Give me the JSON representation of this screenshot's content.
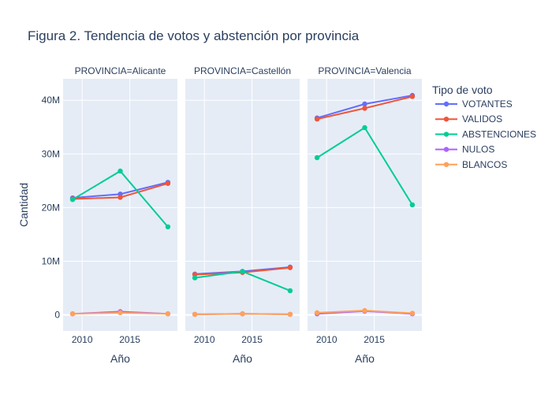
{
  "chart_data": {
    "type": "line",
    "title": "Figura 2. Tendencia de votos y abstención por provincia",
    "xlabel": "Año",
    "ylabel": "Cantidad",
    "x": [
      2009,
      2014,
      2019
    ],
    "xlim": [
      2008,
      2020
    ],
    "ylim": [
      -3,
      44
    ],
    "x_ticks": [
      2010,
      2015
    ],
    "y_ticks": [
      0,
      10,
      20,
      30,
      40
    ],
    "y_tick_labels": [
      "0",
      "10M",
      "20M",
      "30M",
      "40M"
    ],
    "legend_title": "Tipo de voto",
    "legend_position": "right",
    "grid": true,
    "facets": [
      {
        "label": "PROVINCIA=Alicante",
        "series": [
          {
            "name": "VOTANTES",
            "values": [
              21.8,
              22.5,
              24.7
            ]
          },
          {
            "name": "VALIDOS",
            "values": [
              21.6,
              21.9,
              24.5
            ]
          },
          {
            "name": "ABSTENCIONES",
            "values": [
              21.5,
              26.8,
              16.4
            ]
          },
          {
            "name": "NULOS",
            "values": [
              0.2,
              0.6,
              0.2
            ]
          },
          {
            "name": "BLANCOS",
            "values": [
              0.2,
              0.4,
              0.2
            ]
          }
        ]
      },
      {
        "label": "PROVINCIA=Castellón",
        "series": [
          {
            "name": "VOTANTES",
            "values": [
              7.6,
              8.1,
              8.9
            ]
          },
          {
            "name": "VALIDOS",
            "values": [
              7.5,
              7.9,
              8.8
            ]
          },
          {
            "name": "ABSTENCIONES",
            "values": [
              6.9,
              8.1,
              4.5
            ]
          },
          {
            "name": "NULOS",
            "values": [
              0.1,
              0.2,
              0.1
            ]
          },
          {
            "name": "BLANCOS",
            "values": [
              0.1,
              0.2,
              0.1
            ]
          }
        ]
      },
      {
        "label": "PROVINCIA=Valencia",
        "series": [
          {
            "name": "VOTANTES",
            "values": [
              36.7,
              39.3,
              40.9
            ]
          },
          {
            "name": "VALIDOS",
            "values": [
              36.5,
              38.5,
              40.7
            ]
          },
          {
            "name": "ABSTENCIONES",
            "values": [
              29.3,
              34.9,
              20.5
            ]
          },
          {
            "name": "NULOS",
            "values": [
              0.2,
              0.7,
              0.2
            ]
          },
          {
            "name": "BLANCOS",
            "values": [
              0.4,
              0.8,
              0.3
            ]
          }
        ]
      }
    ],
    "colors": {
      "VOTANTES": "#636efa",
      "VALIDOS": "#ef553b",
      "ABSTENCIONES": "#00cc96",
      "NULOS": "#ab63fa",
      "BLANCOS": "#ffa15a"
    },
    "plot_background": "#e5ecf6"
  }
}
